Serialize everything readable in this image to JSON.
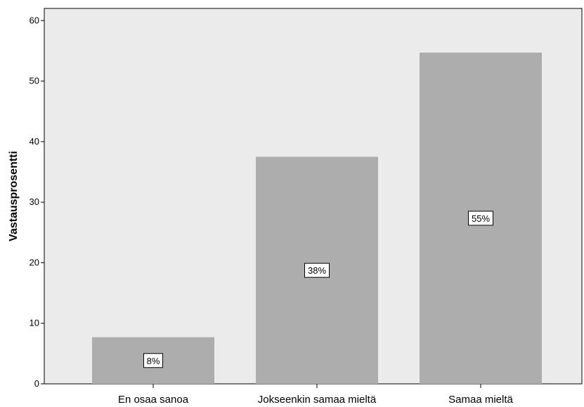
{
  "chart_data": {
    "type": "bar",
    "title": "",
    "xlabel": "",
    "ylabel": "Vastausprosentti",
    "categories": [
      "En osaa sanoa",
      "Jokseenkin samaa mieltä",
      "Samaa mieltä"
    ],
    "values": [
      7.7,
      37.5,
      54.7
    ],
    "data_labels": [
      "8%",
      "38%",
      "55%"
    ],
    "ylim": [
      0,
      62
    ],
    "yticks": [
      0,
      10,
      20,
      30,
      40,
      50,
      60
    ],
    "ytick_labels": [
      "0",
      "10",
      "20",
      "30",
      "40",
      "50",
      "60"
    ],
    "grid": false,
    "legend": "none",
    "colors": {
      "plot_background": "#ebebeb",
      "bar_fill": "#adadad",
      "axis": "#000000",
      "label_box_fill": "#ffffff"
    }
  }
}
